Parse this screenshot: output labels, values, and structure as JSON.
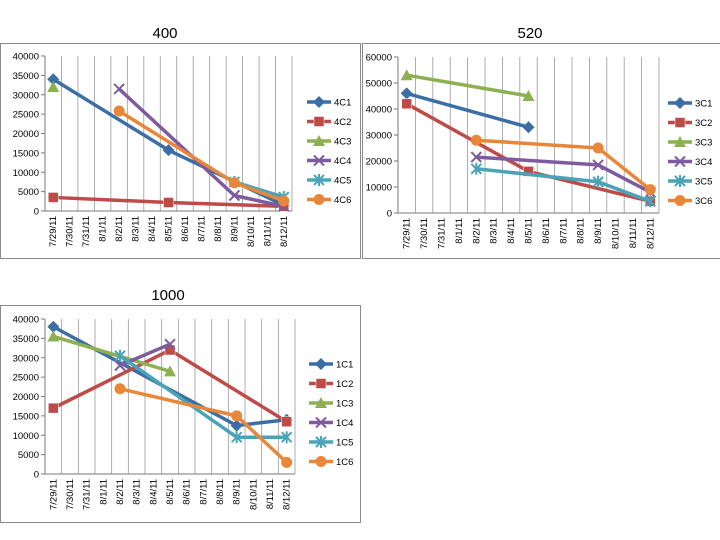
{
  "x_labels": [
    "7/29/11",
    "7/30/11",
    "7/31/11",
    "8/1/11",
    "8/2/11",
    "8/3/11",
    "8/4/11",
    "8/5/11",
    "8/6/11",
    "8/7/11",
    "8/8/11",
    "8/9/11",
    "8/10/11",
    "8/11/11",
    "8/12/11"
  ],
  "chart_data": [
    {
      "type": "line",
      "title": "400",
      "ylim": [
        0,
        40000
      ],
      "yticks": [
        0,
        5000,
        10000,
        15000,
        20000,
        25000,
        30000,
        35000,
        40000
      ],
      "legend_position": "right",
      "grid": "vertical",
      "series": [
        {
          "name": "4C1",
          "color": "#3a6ea5",
          "marker": "diamond",
          "points": [
            [
              "7/29/11",
              34000
            ],
            [
              "8/5/11",
              15700
            ],
            [
              "8/12/11",
              1500
            ]
          ]
        },
        {
          "name": "4C2",
          "color": "#be4b48",
          "marker": "square",
          "points": [
            [
              "7/29/11",
              3500
            ],
            [
              "8/5/11",
              2200
            ],
            [
              "8/12/11",
              1200
            ]
          ]
        },
        {
          "name": "4C3",
          "color": "#8db050",
          "marker": "triangle",
          "points": [
            [
              "7/29/11",
              32000
            ]
          ]
        },
        {
          "name": "4C4",
          "color": "#7d5b9e",
          "marker": "x",
          "points": [
            [
              "8/2/11",
              31500
            ],
            [
              "8/9/11",
              4000
            ],
            [
              "8/12/11",
              1200
            ]
          ]
        },
        {
          "name": "4C5",
          "color": "#4aa4b8",
          "marker": "star",
          "points": [
            [
              "8/9/11",
              7500
            ],
            [
              "8/12/11",
              3600
            ]
          ]
        },
        {
          "name": "4C6",
          "color": "#e8873a",
          "marker": "circle",
          "points": [
            [
              "8/2/11",
              25800
            ],
            [
              "8/9/11",
              7300
            ],
            [
              "8/12/11",
              2600
            ]
          ]
        }
      ]
    },
    {
      "type": "line",
      "title": "520",
      "ylim": [
        0,
        60000
      ],
      "yticks": [
        0,
        10000,
        20000,
        30000,
        40000,
        50000,
        60000
      ],
      "legend_position": "right",
      "grid": "vertical",
      "series": [
        {
          "name": "3C1",
          "color": "#3a6ea5",
          "marker": "diamond",
          "points": [
            [
              "7/29/11",
              46000
            ],
            [
              "8/5/11",
              33000
            ]
          ]
        },
        {
          "name": "3C2",
          "color": "#be4b48",
          "marker": "square",
          "points": [
            [
              "7/29/11",
              42000
            ],
            [
              "8/5/11",
              16000
            ],
            [
              "8/12/11",
              4500
            ]
          ]
        },
        {
          "name": "3C3",
          "color": "#8db050",
          "marker": "triangle",
          "points": [
            [
              "7/29/11",
              53000
            ],
            [
              "8/5/11",
              45000
            ]
          ]
        },
        {
          "name": "3C4",
          "color": "#7d5b9e",
          "marker": "x",
          "points": [
            [
              "8/2/11",
              21500
            ],
            [
              "8/9/11",
              18500
            ],
            [
              "8/12/11",
              8000
            ]
          ]
        },
        {
          "name": "3C5",
          "color": "#4aa4b8",
          "marker": "star",
          "points": [
            [
              "8/2/11",
              17000
            ],
            [
              "8/9/11",
              12000
            ],
            [
              "8/12/11",
              4500
            ]
          ]
        },
        {
          "name": "3C6",
          "color": "#e8873a",
          "marker": "circle",
          "points": [
            [
              "8/2/11",
              28000
            ],
            [
              "8/9/11",
              25000
            ],
            [
              "8/12/11",
              9000
            ]
          ]
        }
      ]
    },
    {
      "type": "line",
      "title": "1000",
      "ylim": [
        0,
        40000
      ],
      "yticks": [
        0,
        5000,
        10000,
        15000,
        20000,
        25000,
        30000,
        35000,
        40000
      ],
      "legend_position": "right",
      "grid": "vertical",
      "series": [
        {
          "name": "1C1",
          "color": "#3a6ea5",
          "marker": "diamond",
          "points": [
            [
              "7/29/11",
              38000
            ],
            [
              "8/9/11",
              12500
            ],
            [
              "8/12/11",
              14000
            ]
          ]
        },
        {
          "name": "1C2",
          "color": "#be4b48",
          "marker": "square",
          "points": [
            [
              "7/29/11",
              17000
            ],
            [
              "8/5/11",
              32000
            ],
            [
              "8/12/11",
              13500
            ]
          ]
        },
        {
          "name": "1C3",
          "color": "#8db050",
          "marker": "triangle",
          "points": [
            [
              "7/29/11",
              35500
            ],
            [
              "8/5/11",
              26500
            ]
          ]
        },
        {
          "name": "1C4",
          "color": "#7d5b9e",
          "marker": "x",
          "points": [
            [
              "8/2/11",
              28000
            ],
            [
              "8/5/11",
              33500
            ]
          ]
        },
        {
          "name": "1C5",
          "color": "#4aa4b8",
          "marker": "star",
          "points": [
            [
              "8/2/11",
              30500
            ],
            [
              "8/9/11",
              9500
            ],
            [
              "8/12/11",
              9500
            ]
          ]
        },
        {
          "name": "1C6",
          "color": "#e8873a",
          "marker": "circle",
          "points": [
            [
              "8/2/11",
              22000
            ],
            [
              "8/9/11",
              15000
            ],
            [
              "8/12/11",
              3000
            ]
          ]
        }
      ]
    }
  ]
}
